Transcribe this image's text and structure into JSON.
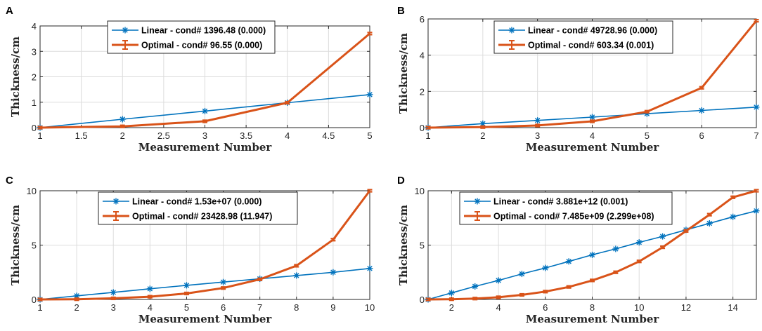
{
  "colors": {
    "linear": "#0072BD",
    "optimal": "#D95319"
  },
  "chart_data": [
    {
      "panel": "A",
      "type": "line",
      "xlabel": "Measurement Number",
      "ylabel": "Thickness/cm",
      "xlim": [
        1,
        5
      ],
      "ylim": [
        0,
        4
      ],
      "xticks": [
        1,
        1.5,
        2,
        2.5,
        3,
        3.5,
        4,
        4.5,
        5
      ],
      "xtick_labels": [
        "1",
        "1.5",
        "2",
        "2.5",
        "3",
        "3.5",
        "4",
        "4.5",
        "5"
      ],
      "yticks": [
        0,
        1,
        2,
        3,
        4
      ],
      "ytick_labels": [
        "0",
        "1",
        "2",
        "3",
        "4"
      ],
      "legend_position": "top-center",
      "series": [
        {
          "name": "Linear - cond# 1396.48 (0.000)",
          "marker": "asterisk",
          "x": [
            1,
            2,
            3,
            4,
            5
          ],
          "values": [
            0,
            0.33,
            0.65,
            0.98,
            1.3
          ]
        },
        {
          "name": "Optimal - cond# 96.55 (0.000)",
          "marker": "errorbar",
          "x": [
            1,
            2,
            3,
            4,
            5
          ],
          "values": [
            0,
            0.05,
            0.25,
            0.98,
            3.7
          ]
        }
      ]
    },
    {
      "panel": "B",
      "type": "line",
      "xlabel": "Measurement Number",
      "ylabel": "Thickness/cm",
      "xlim": [
        1,
        7
      ],
      "ylim": [
        0,
        6
      ],
      "xticks": [
        1,
        2,
        3,
        4,
        5,
        6,
        7
      ],
      "xtick_labels": [
        "1",
        "2",
        "3",
        "4",
        "5",
        "6",
        "7"
      ],
      "yticks": [
        0,
        2,
        4,
        6
      ],
      "ytick_labels": [
        "0",
        "2",
        "4",
        "6"
      ],
      "legend_position": "top-center",
      "series": [
        {
          "name": "Linear - cond# 49728.96 (0.000)",
          "marker": "asterisk",
          "x": [
            1,
            2,
            3,
            4,
            5,
            6,
            7
          ],
          "values": [
            0,
            0.22,
            0.4,
            0.58,
            0.77,
            0.95,
            1.13
          ]
        },
        {
          "name": "Optimal - cond# 603.34 (0.001)",
          "marker": "errorbar",
          "x": [
            1,
            2,
            3,
            4,
            5,
            6,
            7
          ],
          "values": [
            0,
            0.03,
            0.12,
            0.35,
            0.88,
            2.2,
            5.9
          ]
        }
      ]
    },
    {
      "panel": "C",
      "type": "line",
      "xlabel": "Measurement Number",
      "ylabel": "Thickness/cm",
      "xlim": [
        1,
        10
      ],
      "ylim": [
        0,
        10
      ],
      "xticks": [
        1,
        2,
        3,
        4,
        5,
        6,
        7,
        8,
        9,
        10
      ],
      "xtick_labels": [
        "1",
        "2",
        "3",
        "4",
        "5",
        "6",
        "7",
        "8",
        "9",
        "10"
      ],
      "yticks": [
        0,
        5,
        10
      ],
      "ytick_labels": [
        "0",
        "5",
        "10"
      ],
      "legend_position": "top-center",
      "series": [
        {
          "name": "Linear - cond# 1.53e+07 (0.000)",
          "marker": "asterisk",
          "x": [
            1,
            2,
            3,
            4,
            5,
            6,
            7,
            8,
            9,
            10
          ],
          "values": [
            0,
            0.33,
            0.65,
            0.98,
            1.3,
            1.6,
            1.9,
            2.2,
            2.5,
            2.85
          ]
        },
        {
          "name": "Optimal - cond# 23428.98 (11.947)",
          "marker": "errorbar",
          "x": [
            1,
            2,
            3,
            4,
            5,
            6,
            7,
            8,
            9,
            10
          ],
          "values": [
            0,
            0.02,
            0.1,
            0.25,
            0.55,
            1.05,
            1.85,
            3.1,
            5.5,
            10
          ]
        }
      ]
    },
    {
      "panel": "D",
      "type": "line",
      "xlabel": "Measurement Number",
      "ylabel": "Thickness/cm",
      "xlim": [
        1,
        15
      ],
      "ylim": [
        0,
        10
      ],
      "xticks": [
        2,
        4,
        6,
        8,
        10,
        12,
        14
      ],
      "xtick_labels": [
        "2",
        "4",
        "6",
        "8",
        "10",
        "12",
        "14"
      ],
      "yticks": [
        0,
        5,
        10
      ],
      "ytick_labels": [
        "0",
        "5",
        "10"
      ],
      "legend_position": "top-center",
      "series": [
        {
          "name": "Linear - cond# 3.881e+12 (0.001)",
          "marker": "asterisk",
          "x": [
            1,
            2,
            3,
            4,
            5,
            6,
            7,
            8,
            9,
            10,
            11,
            12,
            13,
            14,
            15
          ],
          "values": [
            0,
            0.6,
            1.2,
            1.75,
            2.35,
            2.9,
            3.5,
            4.1,
            4.65,
            5.25,
            5.8,
            6.4,
            7.0,
            7.6,
            8.15
          ]
        },
        {
          "name": "Optimal - cond# 7.485e+09 (2.299e+08)",
          "marker": "errorbar",
          "x": [
            1,
            2,
            3,
            4,
            5,
            6,
            7,
            8,
            9,
            10,
            11,
            12,
            13,
            14,
            15
          ],
          "values": [
            0,
            0.02,
            0.08,
            0.2,
            0.42,
            0.72,
            1.15,
            1.75,
            2.5,
            3.5,
            4.8,
            6.3,
            7.8,
            9.4,
            10
          ]
        }
      ]
    }
  ]
}
